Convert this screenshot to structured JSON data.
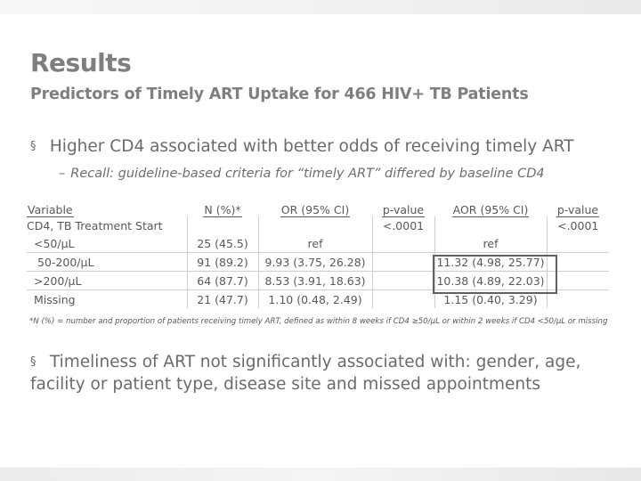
{
  "slide": {
    "title": "Results",
    "subtitle": "Predictors of Timely ART Uptake for 466 HIV+ TB Patients",
    "bullet_marker": "§",
    "bullet1": "Higher CD4 associated with better odds of receiving timely ART",
    "sub_dash": "–",
    "sub_bullet": "Recall: guideline-based criteria for “timely ART” differed by baseline CD4",
    "footnote": "*N (%) = number and proportion of patients receiving timely ART, defined as within 8 weeks if CD4 ≥50/µL  or within 2 weeks if CD4 <50/µL or missing",
    "bullet2": "Timeliness of ART not significantly associated with: gender, age, facility or patient type, disease site and missed appointments"
  },
  "table": {
    "headers": [
      "Variable",
      "N (%)*",
      "OR (95% CI)",
      "p-value",
      "AOR (95% CI)",
      "p-value"
    ],
    "group_label": "CD4, TB Treatment Start",
    "group_p": "<.0001",
    "group_p_adj": "<.0001",
    "rows": [
      {
        "variable": "<50/µL",
        "n": "25 (45.5)",
        "or": "ref",
        "aor": "ref"
      },
      {
        "variable": "50-200/µL",
        "n": "91 (89.2)",
        "or": "9.93 (3.75, 26.28)",
        "aor": "11.32 (4.98, 25.77)"
      },
      {
        "variable": ">200/µL",
        "n": "64 (87.7)",
        "or": "8.53 (3.91, 18.63)",
        "aor": "10.38 (4.89, 22.03)"
      },
      {
        "variable": "Missing",
        "n": "21 (47.7)",
        "or": "1.10 (0.48, 2.49)",
        "aor": "1.15 (0.40, 3.29)"
      }
    ]
  }
}
